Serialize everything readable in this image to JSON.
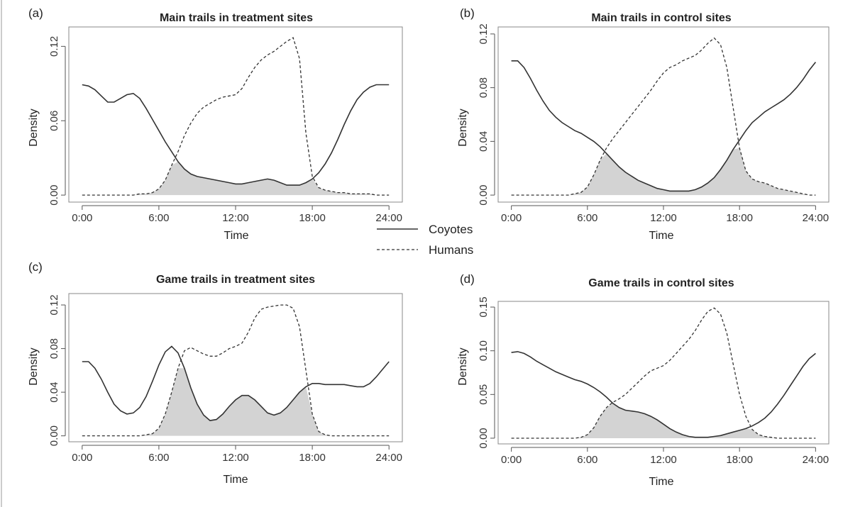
{
  "legend": {
    "entries": [
      {
        "label": "Coyotes",
        "style": "solid"
      },
      {
        "label": "Humans",
        "style": "dashed"
      }
    ]
  },
  "colors": {
    "overlap_fill": "#d3d3d3",
    "line": "#333333",
    "axis": "#555555",
    "frame": "#888888"
  },
  "chart_data": [
    {
      "type": "line",
      "panel_label": "(a)",
      "title": "Main trails in treatment sites",
      "xlabel": "Time",
      "ylabel": "Density",
      "xlim": [
        0,
        24
      ],
      "ylim": [
        0,
        0.13
      ],
      "xticks": [
        {
          "value": 0,
          "label": "0:00"
        },
        {
          "value": 6,
          "label": "6:00"
        },
        {
          "value": 12,
          "label": "12:00"
        },
        {
          "value": 18,
          "label": "18:00"
        },
        {
          "value": 24,
          "label": "24:00"
        }
      ],
      "yticks": [
        {
          "value": 0,
          "label": "0.00"
        },
        {
          "value": 0.06,
          "label": "0.06"
        },
        {
          "value": 0.12,
          "label": "0.12"
        }
      ],
      "overlap_shaded": true,
      "series": [
        {
          "name": "Coyotes",
          "style": "solid",
          "x": [
            0,
            0.5,
            1,
            1.5,
            2,
            2.5,
            3,
            3.5,
            4,
            4.5,
            5,
            5.5,
            6,
            6.5,
            7,
            7.5,
            8,
            8.5,
            9,
            9.5,
            10,
            10.5,
            11,
            11.5,
            12,
            12.5,
            13,
            13.5,
            14,
            14.5,
            15,
            15.5,
            16,
            16.5,
            17,
            17.5,
            18,
            18.5,
            19,
            19.5,
            20,
            20.5,
            21,
            21.5,
            22,
            22.5,
            23,
            23.5,
            24
          ],
          "y": [
            0.089,
            0.088,
            0.085,
            0.08,
            0.075,
            0.075,
            0.078,
            0.081,
            0.082,
            0.078,
            0.07,
            0.061,
            0.052,
            0.043,
            0.035,
            0.027,
            0.021,
            0.017,
            0.015,
            0.014,
            0.013,
            0.012,
            0.011,
            0.01,
            0.009,
            0.009,
            0.01,
            0.011,
            0.012,
            0.013,
            0.012,
            0.01,
            0.008,
            0.008,
            0.008,
            0.01,
            0.013,
            0.018,
            0.025,
            0.034,
            0.045,
            0.057,
            0.068,
            0.077,
            0.083,
            0.087,
            0.089,
            0.089,
            0.089
          ]
        },
        {
          "name": "Humans",
          "style": "dashed",
          "x": [
            0,
            0.5,
            1,
            1.5,
            2,
            2.5,
            3,
            3.5,
            4,
            4.5,
            5,
            5.5,
            6,
            6.5,
            7,
            7.5,
            8,
            8.5,
            9,
            9.5,
            10,
            10.5,
            11,
            11.5,
            12,
            12.5,
            13,
            13.5,
            14,
            14.5,
            15,
            15.5,
            16,
            16.5,
            17,
            17.5,
            18,
            18.5,
            19,
            19.5,
            20,
            20.5,
            21,
            21.5,
            22,
            22.5,
            23,
            23.5,
            24
          ],
          "y": [
            0,
            0,
            0,
            0,
            0,
            0,
            0,
            0,
            0,
            0.001,
            0.001,
            0.002,
            0.005,
            0.012,
            0.024,
            0.035,
            0.048,
            0.058,
            0.066,
            0.071,
            0.074,
            0.077,
            0.079,
            0.08,
            0.081,
            0.086,
            0.095,
            0.103,
            0.109,
            0.113,
            0.116,
            0.12,
            0.124,
            0.127,
            0.11,
            0.05,
            0.015,
            0.006,
            0.004,
            0.003,
            0.002,
            0.002,
            0.001,
            0.001,
            0.001,
            0.001,
            0,
            0,
            0
          ]
        }
      ]
    },
    {
      "type": "line",
      "panel_label": "(b)",
      "title": "Main trails in control sites",
      "xlabel": "Time",
      "ylabel": "Density",
      "xlim": [
        0,
        24
      ],
      "ylim": [
        0,
        0.12
      ],
      "xticks": [
        {
          "value": 0,
          "label": "0:00"
        },
        {
          "value": 6,
          "label": "6:00"
        },
        {
          "value": 12,
          "label": "12:00"
        },
        {
          "value": 18,
          "label": "18:00"
        },
        {
          "value": 24,
          "label": "24:00"
        }
      ],
      "yticks": [
        {
          "value": 0,
          "label": "0.00"
        },
        {
          "value": 0.04,
          "label": "0.04"
        },
        {
          "value": 0.08,
          "label": "0.08"
        },
        {
          "value": 0.12,
          "label": "0.12"
        }
      ],
      "overlap_shaded": true,
      "series": [
        {
          "name": "Coyotes",
          "style": "solid",
          "x": [
            0,
            0.5,
            1,
            1.5,
            2,
            2.5,
            3,
            3.5,
            4,
            4.5,
            5,
            5.5,
            6,
            6.5,
            7,
            7.5,
            8,
            8.5,
            9,
            9.5,
            10,
            10.5,
            11,
            11.5,
            12,
            12.5,
            13,
            13.5,
            14,
            14.5,
            15,
            15.5,
            16,
            16.5,
            17,
            17.5,
            18,
            18.5,
            19,
            19.5,
            20,
            20.5,
            21,
            21.5,
            22,
            22.5,
            23,
            23.5,
            24
          ],
          "y": [
            0.1,
            0.1,
            0.095,
            0.087,
            0.078,
            0.07,
            0.063,
            0.058,
            0.054,
            0.051,
            0.048,
            0.046,
            0.043,
            0.04,
            0.036,
            0.031,
            0.026,
            0.021,
            0.017,
            0.014,
            0.011,
            0.009,
            0.007,
            0.005,
            0.004,
            0.003,
            0.003,
            0.003,
            0.003,
            0.004,
            0.006,
            0.009,
            0.013,
            0.019,
            0.026,
            0.034,
            0.041,
            0.048,
            0.054,
            0.058,
            0.062,
            0.065,
            0.068,
            0.071,
            0.075,
            0.08,
            0.086,
            0.093,
            0.099
          ]
        },
        {
          "name": "Humans",
          "style": "dashed",
          "x": [
            0,
            0.5,
            1,
            1.5,
            2,
            2.5,
            3,
            3.5,
            4,
            4.5,
            5,
            5.5,
            6,
            6.5,
            7,
            7.5,
            8,
            8.5,
            9,
            9.5,
            10,
            10.5,
            11,
            11.5,
            12,
            12.5,
            13,
            13.5,
            14,
            14.5,
            15,
            15.5,
            16,
            16.5,
            17,
            17.5,
            18,
            18.5,
            19,
            19.5,
            20,
            20.5,
            21,
            21.5,
            22,
            22.5,
            23,
            23.5,
            24
          ],
          "y": [
            0,
            0,
            0,
            0,
            0,
            0,
            0,
            0,
            0,
            0,
            0.001,
            0.002,
            0.006,
            0.015,
            0.026,
            0.035,
            0.042,
            0.048,
            0.054,
            0.06,
            0.066,
            0.072,
            0.078,
            0.085,
            0.091,
            0.095,
            0.097,
            0.1,
            0.102,
            0.104,
            0.108,
            0.113,
            0.117,
            0.112,
            0.095,
            0.065,
            0.035,
            0.018,
            0.012,
            0.01,
            0.009,
            0.007,
            0.005,
            0.004,
            0.003,
            0.002,
            0.001,
            0,
            0
          ]
        }
      ]
    },
    {
      "type": "line",
      "panel_label": "(c)",
      "title": "Game trails in treatment sites",
      "xlabel": "Time",
      "ylabel": "Density",
      "xlim": [
        0,
        24
      ],
      "ylim": [
        0,
        0.125
      ],
      "xticks": [
        {
          "value": 0,
          "label": "0:00"
        },
        {
          "value": 6,
          "label": "6:00"
        },
        {
          "value": 12,
          "label": "12:00"
        },
        {
          "value": 18,
          "label": "18:00"
        },
        {
          "value": 24,
          "label": "24:00"
        }
      ],
      "yticks": [
        {
          "value": 0,
          "label": "0.00"
        },
        {
          "value": 0.04,
          "label": "0.04"
        },
        {
          "value": 0.08,
          "label": "0.08"
        },
        {
          "value": 0.12,
          "label": "0.12"
        }
      ],
      "overlap_shaded": true,
      "series": [
        {
          "name": "Coyotes",
          "style": "solid",
          "x": [
            0,
            0.5,
            1,
            1.5,
            2,
            2.5,
            3,
            3.5,
            4,
            4.5,
            5,
            5.5,
            6,
            6.5,
            7,
            7.5,
            8,
            8.5,
            9,
            9.5,
            10,
            10.5,
            11,
            11.5,
            12,
            12.5,
            13,
            13.5,
            14,
            14.5,
            15,
            15.5,
            16,
            16.5,
            17,
            17.5,
            18,
            18.5,
            19,
            19.5,
            20,
            20.5,
            21,
            21.5,
            22,
            22.5,
            23,
            23.5,
            24
          ],
          "y": [
            0.068,
            0.068,
            0.062,
            0.052,
            0.04,
            0.029,
            0.023,
            0.02,
            0.021,
            0.026,
            0.036,
            0.05,
            0.065,
            0.077,
            0.082,
            0.076,
            0.062,
            0.044,
            0.029,
            0.019,
            0.014,
            0.015,
            0.02,
            0.027,
            0.033,
            0.037,
            0.037,
            0.033,
            0.027,
            0.021,
            0.019,
            0.021,
            0.026,
            0.033,
            0.04,
            0.045,
            0.048,
            0.048,
            0.047,
            0.047,
            0.047,
            0.047,
            0.046,
            0.045,
            0.045,
            0.048,
            0.054,
            0.061,
            0.068
          ]
        },
        {
          "name": "Humans",
          "style": "dashed",
          "x": [
            0,
            0.5,
            1,
            1.5,
            2,
            2.5,
            3,
            3.5,
            4,
            4.5,
            5,
            5.5,
            6,
            6.5,
            7,
            7.5,
            8,
            8.5,
            9,
            9.5,
            10,
            10.5,
            11,
            11.5,
            12,
            12.5,
            13,
            13.5,
            14,
            14.5,
            15,
            15.5,
            16,
            16.5,
            17,
            17.5,
            18,
            18.5,
            19,
            19.5,
            20,
            20.5,
            21,
            21.5,
            22,
            22.5,
            23,
            23.5,
            24
          ],
          "y": [
            0,
            0,
            0,
            0,
            0,
            0,
            0,
            0,
            0,
            0,
            0.001,
            0.002,
            0.007,
            0.02,
            0.04,
            0.062,
            0.078,
            0.081,
            0.078,
            0.075,
            0.073,
            0.073,
            0.076,
            0.08,
            0.082,
            0.085,
            0.095,
            0.108,
            0.116,
            0.118,
            0.119,
            0.12,
            0.12,
            0.117,
            0.1,
            0.06,
            0.02,
            0.004,
            0.001,
            0,
            0,
            0,
            0,
            0,
            0,
            0,
            0,
            0,
            0
          ]
        }
      ]
    },
    {
      "type": "line",
      "panel_label": "(d)",
      "title": "Game trails in control sites",
      "xlabel": "Time",
      "ylabel": "Density",
      "xlim": [
        0,
        24
      ],
      "ylim": [
        0,
        0.15
      ],
      "xticks": [
        {
          "value": 0,
          "label": "0:00"
        },
        {
          "value": 6,
          "label": "6:00"
        },
        {
          "value": 12,
          "label": "12:00"
        },
        {
          "value": 18,
          "label": "18:00"
        },
        {
          "value": 24,
          "label": "24:00"
        }
      ],
      "yticks": [
        {
          "value": 0,
          "label": "0.00"
        },
        {
          "value": 0.05,
          "label": "0.05"
        },
        {
          "value": 0.1,
          "label": "0.10"
        },
        {
          "value": 0.15,
          "label": "0.15"
        }
      ],
      "overlap_shaded": true,
      "series": [
        {
          "name": "Coyotes",
          "style": "solid",
          "x": [
            0,
            0.5,
            1,
            1.5,
            2,
            2.5,
            3,
            3.5,
            4,
            4.5,
            5,
            5.5,
            6,
            6.5,
            7,
            7.5,
            8,
            8.5,
            9,
            9.5,
            10,
            10.5,
            11,
            11.5,
            12,
            12.5,
            13,
            13.5,
            14,
            14.5,
            15,
            15.5,
            16,
            16.5,
            17,
            17.5,
            18,
            18.5,
            19,
            19.5,
            20,
            20.5,
            21,
            21.5,
            22,
            22.5,
            23,
            23.5,
            24
          ],
          "y": [
            0.098,
            0.099,
            0.097,
            0.093,
            0.088,
            0.084,
            0.08,
            0.076,
            0.073,
            0.07,
            0.067,
            0.065,
            0.062,
            0.058,
            0.053,
            0.047,
            0.04,
            0.035,
            0.032,
            0.031,
            0.03,
            0.028,
            0.025,
            0.021,
            0.016,
            0.011,
            0.007,
            0.004,
            0.002,
            0.001,
            0.001,
            0.001,
            0.002,
            0.003,
            0.005,
            0.007,
            0.009,
            0.011,
            0.014,
            0.018,
            0.023,
            0.03,
            0.039,
            0.049,
            0.06,
            0.071,
            0.082,
            0.091,
            0.097
          ]
        },
        {
          "name": "Humans",
          "style": "dashed",
          "x": [
            0,
            0.5,
            1,
            1.5,
            2,
            2.5,
            3,
            3.5,
            4,
            4.5,
            5,
            5.5,
            6,
            6.5,
            7,
            7.5,
            8,
            8.5,
            9,
            9.5,
            10,
            10.5,
            11,
            11.5,
            12,
            12.5,
            13,
            13.5,
            14,
            14.5,
            15,
            15.5,
            16,
            16.5,
            17,
            17.5,
            18,
            18.5,
            19,
            19.5,
            20,
            20.5,
            21,
            21.5,
            22,
            22.5,
            23,
            23.5,
            24
          ],
          "y": [
            0,
            0,
            0,
            0,
            0,
            0,
            0,
            0,
            0,
            0,
            0,
            0.001,
            0.004,
            0.012,
            0.025,
            0.035,
            0.041,
            0.045,
            0.05,
            0.057,
            0.064,
            0.071,
            0.077,
            0.08,
            0.083,
            0.089,
            0.097,
            0.105,
            0.113,
            0.123,
            0.135,
            0.145,
            0.149,
            0.142,
            0.12,
            0.085,
            0.05,
            0.025,
            0.01,
            0.004,
            0.002,
            0.001,
            0,
            0,
            0,
            0,
            0,
            0,
            0
          ]
        }
      ]
    }
  ]
}
